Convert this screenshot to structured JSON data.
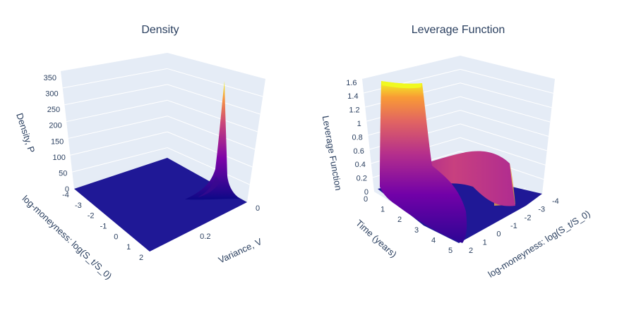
{
  "chart_data": [
    {
      "type": "surface",
      "title": "Density",
      "z_axis": {
        "label": "Density, P",
        "ticks": [
          "0",
          "50",
          "100",
          "150",
          "200",
          "250",
          "300",
          "350"
        ],
        "range": [
          0,
          370
        ]
      },
      "x_axis": {
        "label": "log-moneyness: log(S_t/S_0)",
        "ticks": [
          "-4",
          "-3",
          "-2",
          "-1",
          "0",
          "1",
          "2"
        ],
        "range": [
          -4,
          2
        ]
      },
      "y_axis": {
        "label": "Variance, V",
        "ticks": [
          "0",
          "0.2"
        ],
        "range": [
          0,
          0.35
        ]
      },
      "peak": {
        "log_moneyness": 0,
        "variance": 0.01,
        "density": 370
      },
      "colorscale": "Plasma"
    },
    {
      "type": "surface",
      "title": "Leverage Function",
      "z_axis": {
        "label": "Leverage Function",
        "ticks": [
          "0",
          "0.2",
          "0.4",
          "0.6",
          "0.8",
          "1",
          "1.2",
          "1.4",
          "1.6"
        ],
        "range": [
          0,
          1.65
        ]
      },
      "t_axis": {
        "label": "Time (years)",
        "ticks": [
          "0",
          "1",
          "2",
          "3",
          "4",
          "5"
        ],
        "range": [
          0,
          5
        ]
      },
      "x_axis": {
        "label": "log-moneyness: log(S_t/S_0)",
        "ticks": [
          "2",
          "1",
          "0",
          "-1",
          "-2",
          "-3",
          "-4"
        ],
        "range": [
          -4,
          2
        ]
      },
      "features": {
        "max_value": 1.62,
        "plateau_value": 0.75
      },
      "colorscale": "Plasma"
    }
  ],
  "colors": {
    "wall": "#e5ecf6",
    "text": "#2a3f5f",
    "floor": "#1f1896",
    "peak": "#f0f921"
  }
}
